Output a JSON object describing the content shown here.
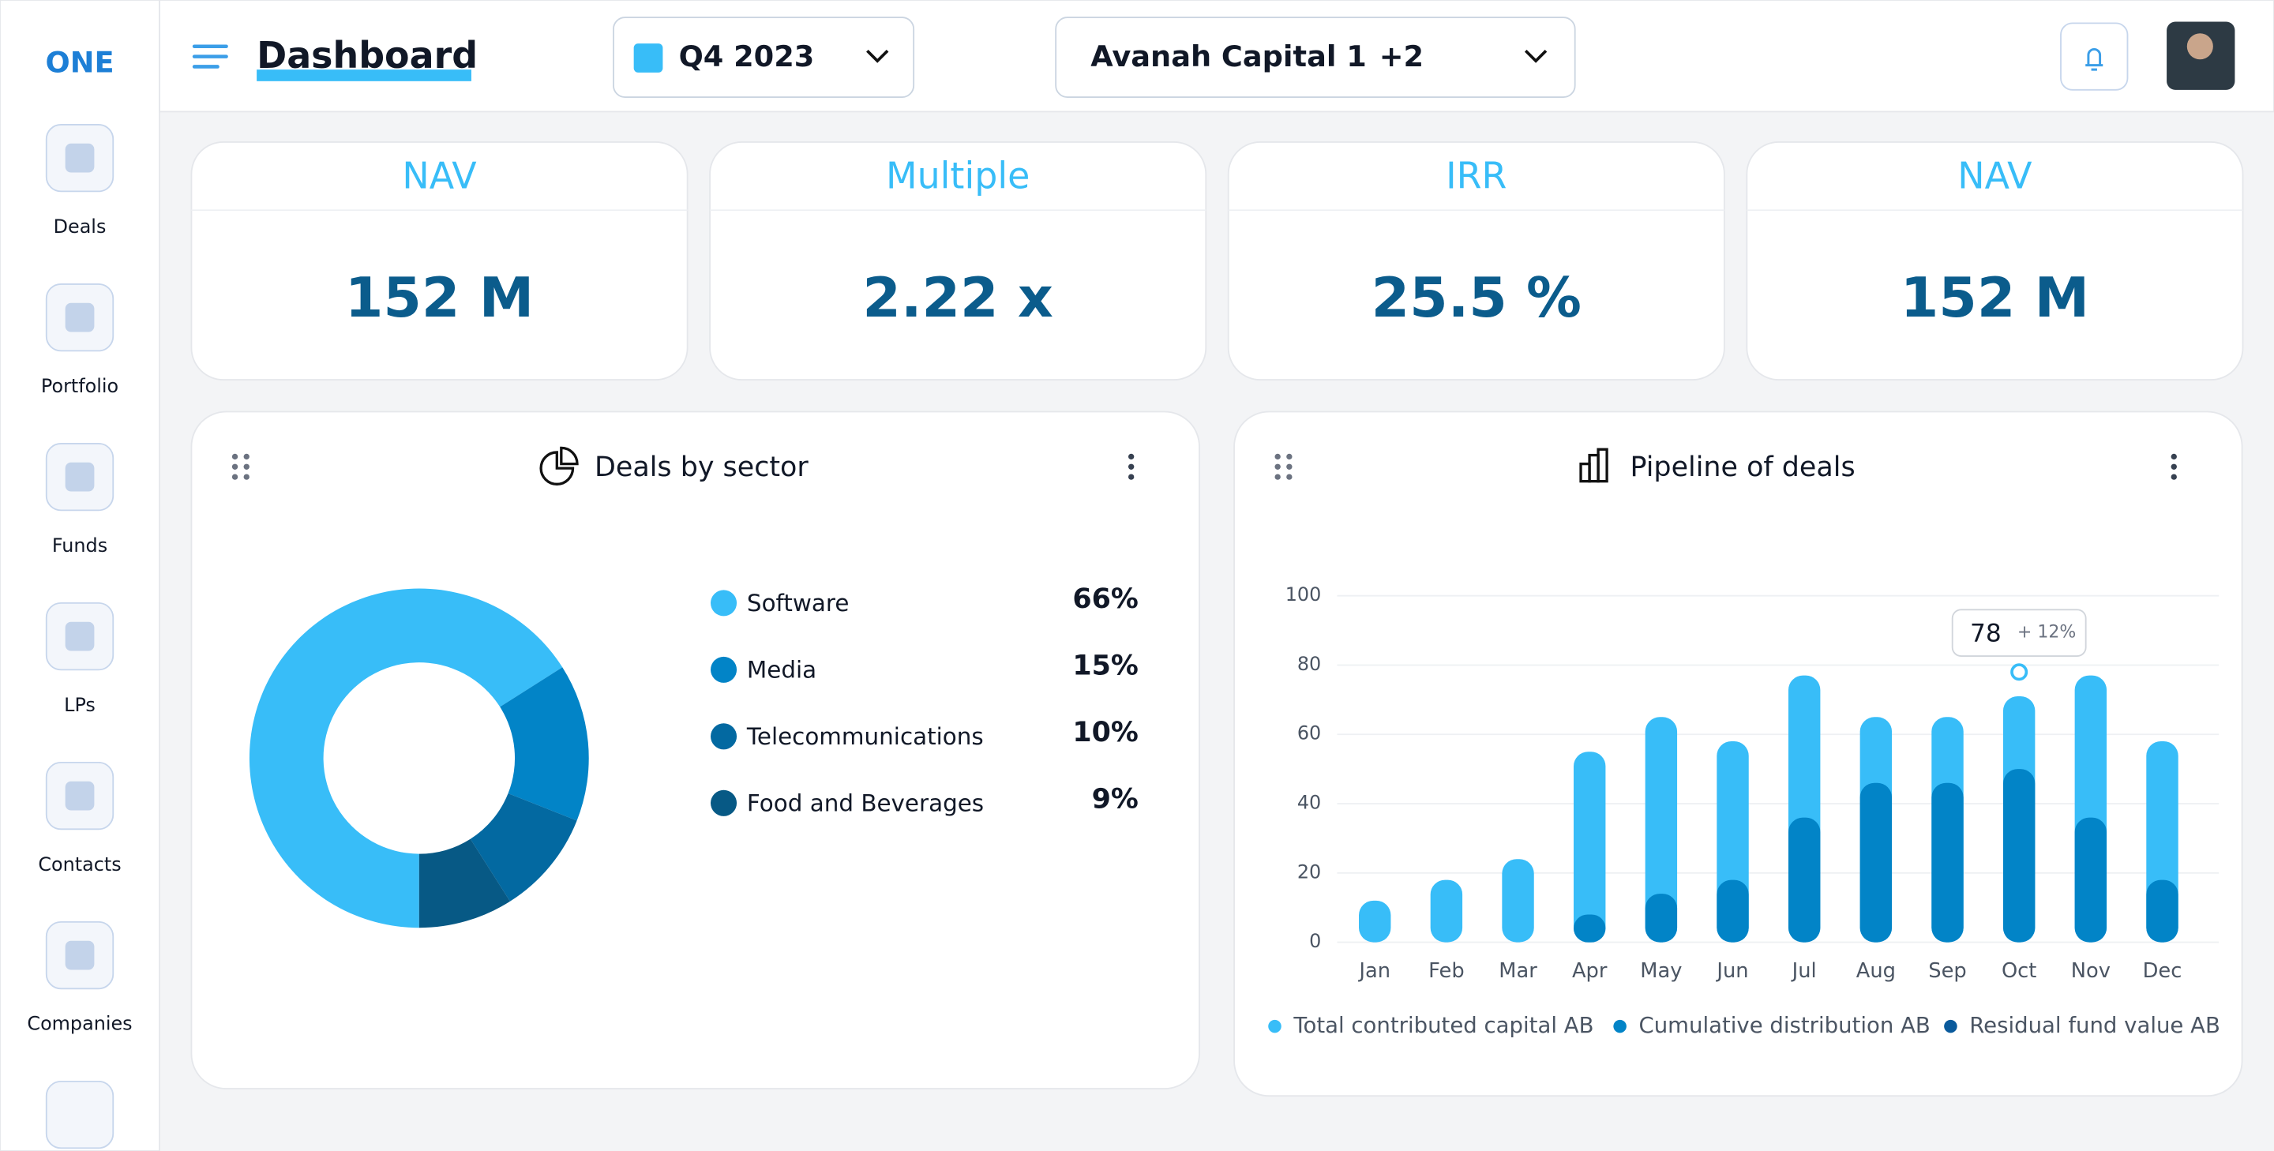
{
  "sidebar": {
    "logo": "ONE",
    "items": [
      "Deals",
      "Portfolio",
      "Funds",
      "LPs",
      "Contacts",
      "Companies"
    ]
  },
  "header": {
    "title": "Dashboard",
    "period": "Q4 2023",
    "entity": "Avanah Capital 1",
    "entity_extra": "+2"
  },
  "kpis": [
    {
      "label": "NAV",
      "value": "152 M"
    },
    {
      "label": "Multiple",
      "value": "2.22 x"
    },
    {
      "label": "IRR",
      "value": "25.5 %"
    },
    {
      "label": "NAV",
      "value": "152 M"
    }
  ],
  "chart_data": [
    {
      "type": "pie",
      "title": "Deals by sector",
      "donut": true,
      "categories": [
        "Software",
        "Media",
        "Telecommunications",
        "Food and Beverages"
      ],
      "values": [
        66,
        15,
        10,
        9
      ],
      "value_labels": [
        "66%",
        "15%",
        "10%",
        "9%"
      ],
      "colors": [
        "#38bdf8",
        "#0284c7",
        "#0369a1",
        "#075985"
      ]
    },
    {
      "type": "bar",
      "title": "Pipeline of deals",
      "overlap": true,
      "grid": true,
      "legend": "bottom",
      "categories": [
        "Jan",
        "Feb",
        "Mar",
        "Apr",
        "May",
        "Jun",
        "Jul",
        "Aug",
        "Sep",
        "Oct",
        "Nov",
        "Dec"
      ],
      "series": [
        {
          "name": "Total contributed capital AB",
          "color": "#38bdf8",
          "values": [
            12,
            18,
            24,
            55,
            65,
            58,
            77,
            65,
            65,
            71,
            77,
            58
          ]
        },
        {
          "name": "Cumulative distribution AB",
          "color": "#0284c7",
          "values": [
            0,
            0,
            0,
            8,
            14,
            18,
            36,
            46,
            46,
            50,
            36,
            18
          ]
        },
        {
          "name": "Residual fund value AB",
          "color": "#0a5a9c",
          "values": [
            null,
            null,
            null,
            null,
            null,
            null,
            null,
            null,
            null,
            null,
            null,
            null
          ]
        }
      ],
      "ylim": [
        0,
        100
      ],
      "yticks": [
        0,
        20,
        40,
        60,
        80,
        100
      ],
      "annotation": {
        "category": "Oct",
        "value": 78,
        "label": "+ 12%"
      }
    }
  ]
}
